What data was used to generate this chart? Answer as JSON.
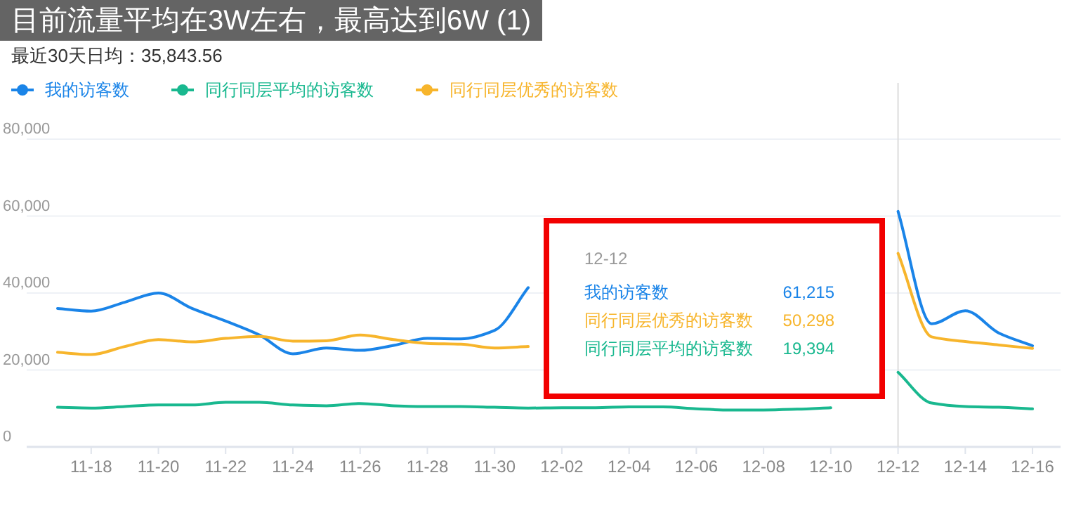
{
  "chart_data": {
    "type": "line",
    "title": "目前流量平均在3W左右，最高达到6W (1)",
    "subtitle": "最近30天日均：35,843.56",
    "categories": [
      null,
      "11-18",
      null,
      "11-20",
      null,
      "11-22",
      null,
      "11-24",
      null,
      "11-26",
      null,
      "11-28",
      null,
      "11-30",
      null,
      "12-02",
      null,
      "12-04",
      null,
      "12-06",
      null,
      "12-08",
      null,
      "12-10",
      null,
      "12-12",
      null,
      "12-14",
      null,
      "12-16"
    ],
    "series": [
      {
        "name": "我的访客数",
        "color": "#1a84e8",
        "values": [
          36000,
          35300,
          37600,
          40000,
          36000,
          32700,
          29100,
          24200,
          25700,
          25100,
          26400,
          28200,
          28100,
          30300,
          41400,
          null,
          null,
          null,
          null,
          null,
          null,
          null,
          null,
          null,
          null,
          61215,
          32000,
          35400,
          29600,
          26300
        ]
      },
      {
        "name": "同行同层平均的访客数",
        "color": "#19b88f",
        "values": [
          10300,
          10100,
          10500,
          10900,
          10900,
          11600,
          11600,
          10900,
          10700,
          11300,
          10700,
          10500,
          10500,
          10300,
          10100,
          10200,
          10200,
          10400,
          10400,
          9900,
          9600,
          9600,
          9800,
          10200,
          null,
          19394,
          11400,
          10500,
          10300,
          9900
        ]
      },
      {
        "name": "同行同层优秀的访客数",
        "color": "#f7b52c",
        "values": [
          24600,
          24000,
          26100,
          27900,
          27300,
          28200,
          28700,
          27500,
          27600,
          29100,
          27900,
          26900,
          26700,
          25700,
          26100,
          null,
          null,
          null,
          null,
          null,
          null,
          null,
          null,
          null,
          null,
          50298,
          28600,
          27400,
          26500,
          25600
        ]
      }
    ],
    "ylim": [
      0,
      80000
    ],
    "yticks": [
      {
        "value": 0,
        "label": "0"
      },
      {
        "value": 20000,
        "label": "20,000"
      },
      {
        "value": 40000,
        "label": "40,000"
      },
      {
        "value": 60000,
        "label": "60,000"
      },
      {
        "value": 80000,
        "label": "80,000"
      }
    ],
    "grid": "y",
    "legend": "top left",
    "ref_lines": [
      {
        "axis": "x",
        "value": "12-12",
        "color": "#dddddd"
      }
    ],
    "annotations": [
      "12-12",
      "我的访客数",
      "61,215",
      "同行同层优秀的访客数",
      "50,298",
      "同行同层平均的访客数",
      "19,394"
    ]
  }
}
